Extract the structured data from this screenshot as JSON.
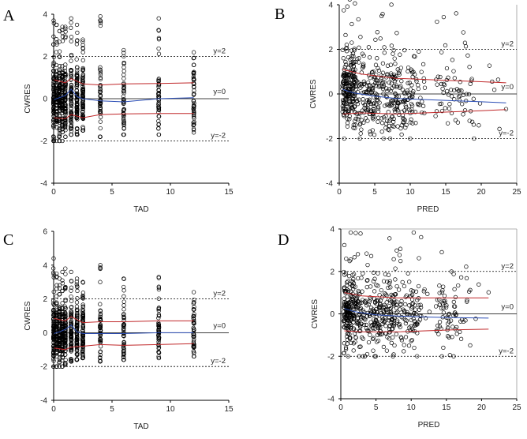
{
  "figure": {
    "panels": [
      {
        "id": "A",
        "letter": "A"
      },
      {
        "id": "B",
        "letter": "B"
      },
      {
        "id": "C",
        "letter": "C"
      },
      {
        "id": "D",
        "letter": "D"
      }
    ]
  },
  "chart_data": [
    {
      "panel": "A",
      "type": "scatter",
      "title": "",
      "xlabel": "TAD",
      "ylabel": "CWRES",
      "xlim": [
        0,
        15
      ],
      "ylim": [
        -4,
        4
      ],
      "xticks": [
        "0",
        "5",
        "10",
        "15"
      ],
      "yticks": [
        "-4",
        "-2",
        "0",
        "2",
        "4"
      ],
      "ref_labels": {
        "upper": "y=2",
        "zero": "y=0",
        "lower": "y=-2"
      },
      "x_clusters": [
        0,
        0.25,
        0.5,
        0.75,
        1,
        1.5,
        2,
        2.5,
        4,
        6,
        9,
        12
      ],
      "y_range_per_cluster": [
        [
          -2.0,
          3.7
        ],
        [
          -2.0,
          3.5
        ],
        [
          -2.0,
          3.2
        ],
        [
          -2.0,
          3.4
        ],
        [
          -1.8,
          3.4
        ],
        [
          -1.7,
          3.8
        ],
        [
          -1.7,
          3.5
        ],
        [
          -1.5,
          2.8
        ],
        [
          -1.8,
          3.9
        ],
        [
          -1.7,
          2.3
        ],
        [
          -1.7,
          3.8
        ],
        [
          -1.6,
          2.2
        ]
      ],
      "smooth": {
        "x": [
          0,
          0.5,
          1,
          1.5,
          2,
          2.5,
          4,
          6,
          9,
          12
        ],
        "y": [
          -0.05,
          0.05,
          0.15,
          0.45,
          0.1,
          0.0,
          -0.1,
          -0.15,
          0.0,
          0.05
        ]
      },
      "upper_band": {
        "x": [
          0,
          1,
          1.5,
          2.5,
          4,
          6,
          9,
          12
        ],
        "y": [
          0.9,
          0.75,
          0.95,
          0.7,
          0.65,
          0.7,
          0.72,
          0.75
        ]
      },
      "lower_band": {
        "x": [
          0,
          1,
          1.5,
          2.5,
          4,
          6,
          9,
          12
        ],
        "y": [
          -0.9,
          -0.95,
          -0.75,
          -0.9,
          -0.75,
          -0.72,
          -0.7,
          -0.7
        ]
      }
    },
    {
      "panel": "B",
      "type": "scatter",
      "title": "",
      "xlabel": "PRED",
      "ylabel": "CWRES",
      "xlim": [
        0,
        25
      ],
      "ylim": [
        -4,
        4
      ],
      "xticks": [
        "0",
        "5",
        "10",
        "15",
        "20",
        "25"
      ],
      "yticks": [
        "-4",
        "-2",
        "0",
        "2",
        "4"
      ],
      "ref_labels": {
        "upper": "y=2",
        "zero": "y=0",
        "lower": "y=-2"
      },
      "x_range": [
        0.3,
        23.5
      ],
      "y_range": [
        -2.0,
        4.3
      ],
      "smooth": {
        "x": [
          0.5,
          2,
          5,
          8,
          12,
          16,
          20,
          23.5
        ],
        "y": [
          0.2,
          0.05,
          -0.1,
          -0.2,
          -0.25,
          -0.3,
          -0.35,
          -0.4
        ]
      },
      "upper_band": {
        "x": [
          0.5,
          3,
          8,
          12,
          16,
          20,
          23.5
        ],
        "y": [
          1.1,
          0.9,
          0.7,
          0.65,
          0.6,
          0.55,
          0.5
        ]
      },
      "lower_band": {
        "x": [
          0.5,
          3,
          8,
          12,
          16,
          20,
          23.5
        ],
        "y": [
          -0.9,
          -0.85,
          -0.9,
          -0.85,
          -0.8,
          -0.75,
          -0.7
        ]
      }
    },
    {
      "panel": "C",
      "type": "scatter",
      "title": "",
      "xlabel": "TAD",
      "ylabel": "CWRES",
      "xlim": [
        0,
        15
      ],
      "ylim": [
        -4,
        6
      ],
      "xticks": [
        "0",
        "5",
        "10",
        "15"
      ],
      "yticks": [
        "-4",
        "-2",
        "0",
        "2",
        "4",
        "6"
      ],
      "ref_labels": {
        "upper": "y=2",
        "zero": "y=0",
        "lower": "y=-2"
      },
      "x_clusters": [
        0,
        0.25,
        0.5,
        0.75,
        1,
        1.5,
        2,
        2.5,
        4,
        6,
        9,
        12
      ],
      "y_range_per_cluster": [
        [
          -2.0,
          4.4
        ],
        [
          -2.0,
          3.5
        ],
        [
          -2.0,
          3.2
        ],
        [
          -2.0,
          3.6
        ],
        [
          -1.9,
          3.8
        ],
        [
          -1.7,
          3.6
        ],
        [
          -1.6,
          3.2
        ],
        [
          -1.5,
          3.0
        ],
        [
          -1.7,
          4.0
        ],
        [
          -1.6,
          3.2
        ],
        [
          -1.5,
          3.3
        ],
        [
          -1.4,
          2.4
        ]
      ],
      "smooth": {
        "x": [
          0,
          0.5,
          1,
          1.5,
          2,
          2.5,
          4,
          6,
          9,
          12
        ],
        "y": [
          -0.05,
          0.05,
          0.2,
          0.45,
          0.05,
          -0.05,
          -0.05,
          -0.05,
          0.0,
          0.0
        ]
      },
      "upper_band": {
        "x": [
          0,
          1,
          1.5,
          2.5,
          4,
          6,
          9,
          12
        ],
        "y": [
          0.85,
          0.7,
          0.95,
          0.6,
          0.65,
          0.65,
          0.7,
          0.7
        ]
      },
      "lower_band": {
        "x": [
          0,
          1,
          1.5,
          2.5,
          4,
          6,
          9,
          12
        ],
        "y": [
          -0.9,
          -1.0,
          -0.85,
          -0.8,
          -0.7,
          -0.75,
          -0.7,
          -0.65
        ]
      }
    },
    {
      "panel": "D",
      "type": "scatter",
      "title": "",
      "xlabel": "PRED",
      "ylabel": "CWRES",
      "xlim": [
        0,
        25
      ],
      "ylim": [
        -4,
        4
      ],
      "xticks": [
        "0",
        "5",
        "10",
        "15",
        "20",
        "25"
      ],
      "yticks": [
        "-4",
        "-2",
        "0",
        "2",
        "4"
      ],
      "ref_labels": {
        "upper": "y=2",
        "zero": "y=0",
        "lower": "y=-2"
      },
      "x_range": [
        0.3,
        21
      ],
      "y_range": [
        -2.0,
        3.9
      ],
      "smooth": {
        "x": [
          0.5,
          2,
          5,
          8,
          12,
          16,
          21
        ],
        "y": [
          0.25,
          0.1,
          -0.05,
          -0.1,
          -0.15,
          -0.18,
          -0.2
        ]
      },
      "upper_band": {
        "x": [
          0.5,
          3,
          8,
          12,
          16,
          21
        ],
        "y": [
          1.0,
          0.85,
          0.75,
          0.75,
          0.75,
          0.75
        ]
      },
      "lower_band": {
        "x": [
          0.5,
          3,
          8,
          12,
          16,
          21
        ],
        "y": [
          -0.8,
          -0.85,
          -0.85,
          -0.8,
          -0.75,
          -0.72
        ]
      }
    }
  ]
}
